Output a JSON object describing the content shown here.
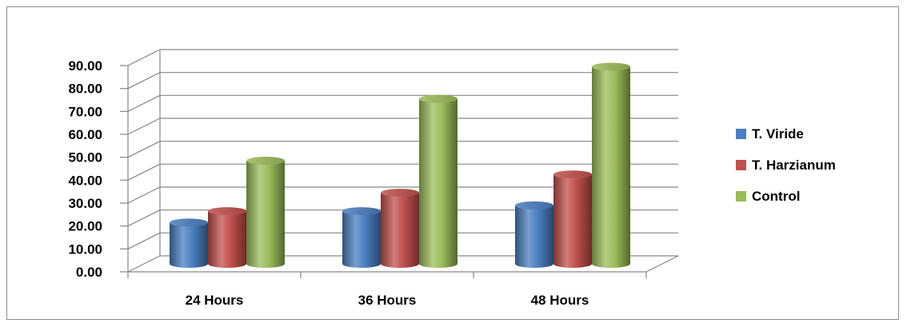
{
  "chart_data": {
    "type": "bar",
    "style": "3d-cylinder",
    "categories": [
      "24 Hours",
      "36 Hours",
      "48 Hours"
    ],
    "series": [
      {
        "name": "T. Viride",
        "values": [
          18,
          23,
          25.5
        ],
        "color": "#4a7ebf"
      },
      {
        "name": "T. Harzianum",
        "values": [
          23,
          31,
          39
        ],
        "color": "#c0504d"
      },
      {
        "name": "Control",
        "values": [
          45,
          72,
          86
        ],
        "color": "#9bbb59"
      }
    ],
    "y_ticks": [
      "0.00",
      "10.00",
      "20.00",
      "30.00",
      "40.00",
      "50.00",
      "60.00",
      "70.00",
      "80.00",
      "90.00"
    ],
    "ylim": [
      0,
      90
    ],
    "grid": true,
    "legend_position": "right",
    "title": "",
    "xlabel": "",
    "ylabel": ""
  }
}
